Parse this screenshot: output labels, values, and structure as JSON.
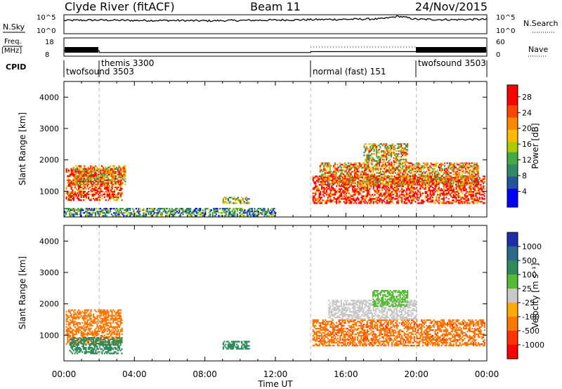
{
  "header": {
    "station": "Clyde River (fitACF)",
    "beam": "Beam 11",
    "date": "24/Nov/2015"
  },
  "top_panels": {
    "nsky_label": "N.Sky",
    "nsky_ticks": [
      "10^5",
      "10^0"
    ],
    "nsearch_label": "N.Search",
    "freq_label_1": "Freq.",
    "freq_label_2": "[MHz]",
    "freq_ticks": [
      "18",
      "8"
    ],
    "nave_label": "Nave",
    "nave_ticks": [
      "60",
      "0"
    ],
    "cpid_label": "CPID",
    "modes": [
      {
        "name": "twofsound 3503",
        "start_hour": 0,
        "end_hour": 2
      },
      {
        "name": "themis 3300",
        "start_hour": 2,
        "end_hour": 14
      },
      {
        "name": "normal (fast) 151",
        "start_hour": 14,
        "end_hour": 20
      },
      {
        "name": "twofsound 3503",
        "start_hour": 20,
        "end_hour": 24
      }
    ]
  },
  "power_panel": {
    "ylabel": "Slant Range [km]",
    "colorbar_label": "Power [dB]",
    "colorbar_ticks": [
      "28",
      "24",
      "20",
      "16",
      "12",
      "8",
      "4"
    ]
  },
  "velocity_panel": {
    "ylabel": "Slant Range [km]",
    "colorbar_label": "Velocity [m s⁻¹]",
    "colorbar_ticks": [
      "1000",
      "500",
      "100",
      "25",
      "-25",
      "-100",
      "-500",
      "-1000"
    ]
  },
  "x_axis": {
    "ticks": [
      "00:00",
      "04:00",
      "08:00",
      "12:00",
      "16:00",
      "20:00",
      "00:00"
    ],
    "label": "Time UT"
  },
  "colors": {
    "power_scale": [
      "#ff0000",
      "#ff4400",
      "#ff8800",
      "#ffbb00",
      "#aacc00",
      "#44aa44",
      "#338866",
      "#225599",
      "#0000ff"
    ],
    "velocity_scale": [
      "#1a2fa8",
      "#2a6a8a",
      "#2e8a5a",
      "#55bb33",
      "#c8c8c8",
      "#ffaa00",
      "#ff7700",
      "#ff3300",
      "#ff0000"
    ]
  },
  "chart_data": [
    {
      "type": "line",
      "title": "N.Sky",
      "x": [
        0,
        2,
        4,
        6,
        8,
        10,
        12,
        14,
        16,
        18,
        19,
        20,
        22,
        24
      ],
      "values": [
        3.5,
        3.6,
        3.5,
        3.5,
        3.4,
        3.5,
        3.6,
        3.7,
        3.8,
        3.9,
        4.6,
        3.8,
        3.7,
        3.8
      ],
      "ylim": [
        0,
        5
      ]
    },
    {
      "type": "line",
      "title": "Freq. [MHz]",
      "x": [
        0,
        2,
        2.01,
        14,
        14.01,
        20,
        20.01,
        24
      ],
      "values": [
        11,
        11,
        10,
        10,
        10.5,
        10.5,
        11,
        11
      ],
      "ylim": [
        8,
        18
      ]
    },
    {
      "type": "heatmap",
      "title": "Power [dB]",
      "xlabel": "Time UT",
      "ylabel": "Slant Range [km]",
      "xlim": [
        0,
        24
      ],
      "ylim": [
        180,
        4500
      ],
      "colorbar": [
        4,
        8,
        12,
        16,
        20,
        24,
        28
      ],
      "regions": [
        {
          "t_start": 0.1,
          "t_end": 3.3,
          "r_start": 700,
          "r_end": 1700,
          "value": 26
        },
        {
          "t_start": 0.5,
          "t_end": 3.5,
          "r_start": 1200,
          "r_end": 1800,
          "value": 18
        },
        {
          "t_start": 0,
          "t_end": 12,
          "r_start": 200,
          "r_end": 450,
          "value": 10
        },
        {
          "t_start": 9,
          "t_end": 10.5,
          "r_start": 600,
          "r_end": 800,
          "value": 14
        },
        {
          "t_start": 14.1,
          "t_end": 23.9,
          "r_start": 600,
          "r_end": 1500,
          "value": 28
        },
        {
          "t_start": 14.5,
          "t_end": 23.5,
          "r_start": 1200,
          "r_end": 1900,
          "value": 20
        },
        {
          "t_start": 17,
          "t_end": 19.5,
          "r_start": 1900,
          "r_end": 2500,
          "value": 17
        }
      ]
    },
    {
      "type": "heatmap",
      "title": "Velocity [m s⁻¹]",
      "xlabel": "Time UT",
      "ylabel": "Slant Range [km]",
      "xlim": [
        0,
        24
      ],
      "ylim": [
        180,
        4500
      ],
      "colorbar": [
        -1000,
        -500,
        -100,
        -25,
        25,
        100,
        500,
        1000
      ],
      "regions": [
        {
          "t_start": 0.1,
          "t_end": 3.3,
          "r_start": 700,
          "r_end": 1800,
          "value": -300
        },
        {
          "t_start": 0.3,
          "t_end": 3.3,
          "r_start": 400,
          "r_end": 900,
          "value": 300
        },
        {
          "t_start": 9,
          "t_end": 10.5,
          "r_start": 550,
          "r_end": 800,
          "value": 150
        },
        {
          "t_start": 14.1,
          "t_end": 23.9,
          "r_start": 650,
          "r_end": 1500,
          "value": -400
        },
        {
          "t_start": 15,
          "t_end": 20,
          "r_start": 1500,
          "r_end": 2100,
          "value": 0
        },
        {
          "t_start": 17.5,
          "t_end": 19.5,
          "r_start": 1900,
          "r_end": 2400,
          "value": 50
        }
      ]
    }
  ]
}
